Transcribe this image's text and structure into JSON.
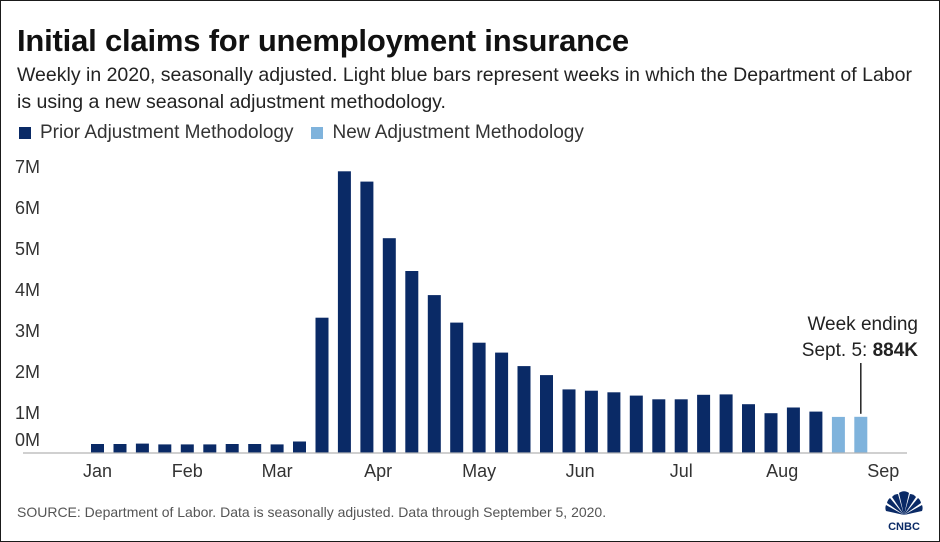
{
  "title": "Initial claims for unemployment insurance",
  "subtitle": "Weekly in 2020, seasonally adjusted. Light blue bars represent weeks in which the Department of Labor is using a new seasonal adjustment methodology.",
  "legend": [
    {
      "label": "Prior Adjustment Methodology",
      "color": "#0a2a66"
    },
    {
      "label": "New Adjustment Methodology",
      "color": "#7fb3dc"
    }
  ],
  "source": "SOURCE: Department of Labor. Data is seasonally adjusted. Data through September 5, 2020.",
  "logo_text": "CNBC",
  "annotation": {
    "line1": "Week ending",
    "line2_prefix": "Sept. 5: ",
    "line2_value": "884K"
  },
  "chart_data": {
    "type": "bar",
    "y_ticks": [
      {
        "label": "0M",
        "value": 0
      },
      {
        "label": "1M",
        "value": 1000000
      },
      {
        "label": "2M",
        "value": 2000000
      },
      {
        "label": "3M",
        "value": 3000000
      },
      {
        "label": "4M",
        "value": 4000000
      },
      {
        "label": "5M",
        "value": 5000000
      },
      {
        "label": "6M",
        "value": 6000000
      },
      {
        "label": "7M",
        "value": 7000000
      }
    ],
    "x_labels": [
      {
        "label": "Jan",
        "week_index": 0
      },
      {
        "label": "Feb",
        "week_index": 4
      },
      {
        "label": "Mar",
        "week_index": 8
      },
      {
        "label": "Apr",
        "week_index": 12.5
      },
      {
        "label": "May",
        "week_index": 17
      },
      {
        "label": "Jun",
        "week_index": 21.5
      },
      {
        "label": "Jul",
        "week_index": 26
      },
      {
        "label": "Aug",
        "week_index": 30.5
      },
      {
        "label": "Sep",
        "week_index": 35
      }
    ],
    "series": [
      {
        "name": "Prior Adjustment Methodology",
        "color": "#0a2a66",
        "values": [
          220000,
          220000,
          230000,
          210000,
          210000,
          210000,
          220000,
          220000,
          210000,
          280000,
          3300000,
          6870000,
          6620000,
          5240000,
          4440000,
          3850000,
          3180000,
          2690000,
          2450000,
          2120000,
          1900000,
          1550000,
          1520000,
          1480000,
          1400000,
          1310000,
          1310000,
          1420000,
          1430000,
          1190000,
          970000,
          1110000,
          1010000,
          null,
          null
        ]
      },
      {
        "name": "New Adjustment Methodology",
        "color": "#7fb3dc",
        "values": [
          null,
          null,
          null,
          null,
          null,
          null,
          null,
          null,
          null,
          null,
          null,
          null,
          null,
          null,
          null,
          null,
          null,
          null,
          null,
          null,
          null,
          null,
          null,
          null,
          null,
          null,
          null,
          null,
          null,
          null,
          null,
          null,
          null,
          880000,
          884000
        ]
      }
    ],
    "ylim": [
      0,
      7000000
    ],
    "grid": false
  }
}
